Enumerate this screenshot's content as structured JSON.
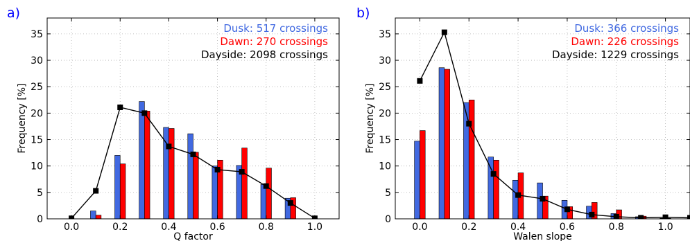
{
  "colors": {
    "dusk": "#4169e1",
    "dawn": "#ff0000",
    "dayside": "#000000",
    "grid": "#b0b0b0"
  },
  "chart_data": [
    {
      "type": "bar",
      "panel_label": "a)",
      "xlabel": "Q factor",
      "ylabel": "Frequency [%]",
      "xlim": [
        -0.1,
        1.1
      ],
      "ylim": [
        0,
        38
      ],
      "xticks": [
        "0.0",
        "0.2",
        "0.4",
        "0.6",
        "0.8",
        "1.0"
      ],
      "yticks": [
        "0",
        "5",
        "10",
        "15",
        "20",
        "25",
        "30",
        "35"
      ],
      "grid": true,
      "legend_position": "top-right",
      "x": [
        0.0,
        0.1,
        0.2,
        0.3,
        0.4,
        0.5,
        0.6,
        0.7,
        0.8,
        0.9,
        1.0
      ],
      "series": [
        {
          "name": "Dusk: 517 crossings",
          "kind": "bar",
          "values": [
            0,
            1.5,
            12.0,
            22.2,
            17.3,
            16.1,
            10.0,
            10.1,
            6.5,
            3.9,
            0
          ]
        },
        {
          "name": "Dawn: 270 crossings",
          "kind": "bar",
          "values": [
            0,
            0.7,
            10.4,
            20.4,
            17.1,
            12.6,
            11.1,
            13.4,
            9.6,
            4.0,
            0
          ]
        },
        {
          "name": "Dayside: 2098 crossings",
          "kind": "line",
          "values": [
            0.1,
            5.3,
            21.1,
            20.0,
            13.7,
            12.2,
            9.3,
            8.9,
            6.2,
            3.0,
            0.1
          ]
        }
      ]
    },
    {
      "type": "bar",
      "panel_label": "b)",
      "xlabel": "Walen slope",
      "ylabel": "Frequency [%]",
      "xlim": [
        -0.1,
        1.1
      ],
      "ylim": [
        0,
        38
      ],
      "xticks": [
        "0.0",
        "0.2",
        "0.4",
        "0.6",
        "0.8",
        "1.0"
      ],
      "yticks": [
        "0",
        "5",
        "10",
        "15",
        "20",
        "25",
        "30",
        "35"
      ],
      "grid": true,
      "legend_position": "top-right",
      "x": [
        0.0,
        0.1,
        0.2,
        0.3,
        0.4,
        0.5,
        0.6,
        0.7,
        0.8,
        0.9,
        1.0,
        1.1
      ],
      "series": [
        {
          "name": "Dusk: 366 crossings",
          "kind": "bar",
          "values": [
            14.7,
            28.6,
            22.0,
            11.7,
            7.3,
            6.8,
            3.5,
            2.4,
            1.0,
            0.4,
            0.1,
            0
          ]
        },
        {
          "name": "Dawn: 226 crossings",
          "kind": "bar",
          "values": [
            16.7,
            28.3,
            22.5,
            11.1,
            8.7,
            4.3,
            2.3,
            3.1,
            1.7,
            0.5,
            0.1,
            0
          ]
        },
        {
          "name": "Dayside: 1229 crossings",
          "kind": "line",
          "values": [
            26.1,
            35.3,
            18.0,
            8.5,
            4.5,
            3.8,
            1.8,
            0.8,
            0.4,
            0.2,
            0.3,
            0.2
          ]
        }
      ]
    }
  ]
}
